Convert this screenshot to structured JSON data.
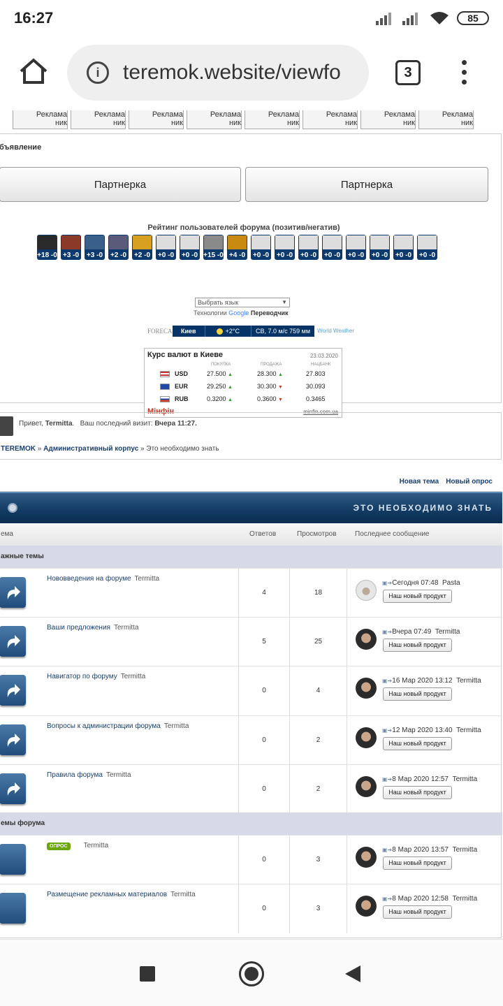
{
  "status": {
    "time": "16:27",
    "battery": "85"
  },
  "browser": {
    "url": "teremok.website/viewfo",
    "tab_count": "3"
  },
  "ads": {
    "label_top": "Реклама",
    "label_bottom": "ник"
  },
  "announce": {
    "label": "бъявление",
    "partner_left": "Партнерка",
    "partner_right": "Партнерка",
    "rating_title": "Рейтинг пользователей форума (позитив/негатив)",
    "ratings": [
      "+18 -0",
      "+3 -0",
      "+3 -0",
      "+2 -0",
      "+2 -0",
      "+0 -0",
      "+0 -0",
      "+15 -0",
      "+4 -0",
      "+0 -0",
      "+0 -0",
      "+0 -0",
      "+0 -0",
      "+0 -0",
      "+0 -0",
      "+0 -0",
      "+0 -0"
    ],
    "lang_select": "Выбрать язык",
    "powered_prefix": "Технологии",
    "powered_google": "Google",
    "powered_translator": "Переводчик"
  },
  "weather": {
    "brand": "FORECA",
    "city": "Киев",
    "temp": "+2°C",
    "wind": "СВ, 7.0 м/с 759 мм",
    "ww": "World Weather"
  },
  "fx": {
    "title": "Курс валют в Киеве",
    "date": "23.03.2020",
    "head_buy": "ПОКУПКА",
    "head_sell": "ПРОДАЖА",
    "head_nbu": "НАЦБАНК",
    "rows": [
      {
        "cur": "USD",
        "buy": "27.500",
        "sell": "28.300",
        "nbu": "27.803"
      },
      {
        "cur": "EUR",
        "buy": "29.250",
        "sell": "30.300",
        "nbu": "30.093"
      },
      {
        "cur": "RUB",
        "buy": "0.3200",
        "sell": "0.3600",
        "nbu": "0.3465"
      }
    ],
    "brand": "Мінфін",
    "link": "minfin.com.ua"
  },
  "welcome": {
    "hello": "Привет,",
    "user": "Termitta",
    "last_visit_label": "Ваш последний визит:",
    "last_visit": "Вчера 11:27."
  },
  "breadcrumb": {
    "home": "TEREMOK",
    "sep": "»",
    "section": "Административный корпус",
    "current": "Это необходимо знать"
  },
  "actions": {
    "new_topic": "Новая тема",
    "new_poll": "Новый опрос"
  },
  "forum": {
    "title": "ЭТО НЕОБХОДИМО ЗНАТЬ",
    "col_topic": "ема",
    "col_replies": "Ответов",
    "col_views": "Просмотров",
    "col_last": "Последнее сообщение",
    "section_important": "ажные темы",
    "section_forum": "емы форума",
    "last_btn": "Наш новый продукт",
    "topics": [
      {
        "title": "Нововведения на форуме",
        "author": "Termitta",
        "replies": "4",
        "views": "18",
        "last_time": "Сегодня 07:48",
        "last_user": "Pasta"
      },
      {
        "title": "Ваши предложения",
        "author": "Termitta",
        "replies": "5",
        "views": "25",
        "last_time": "Вчера 07:49",
        "last_user": "Termitta"
      },
      {
        "title": "Навигатор по форуму",
        "author": "Termitta",
        "replies": "0",
        "views": "4",
        "last_time": "16 Мар 2020 13:12",
        "last_user": "Termitta"
      },
      {
        "title": "Вопросы к администрации форума",
        "author": "Termitta",
        "replies": "0",
        "views": "2",
        "last_time": "12 Мар 2020 13:40",
        "last_user": "Termitta"
      },
      {
        "title": "Правила форума",
        "author": "Termitta",
        "replies": "0",
        "views": "2",
        "last_time": "8 Мар 2020 12:57",
        "last_user": "Termitta"
      },
      {
        "badge": "ОПРОС",
        "author": "Termitta",
        "replies": "0",
        "views": "3",
        "last_time": "8 Мар 2020 13:57",
        "last_user": "Termitta"
      },
      {
        "title": "Размещение рекламных материалов",
        "author": "Termitta",
        "replies": "0",
        "views": "3",
        "last_time": "8 Мар 2020 12:58",
        "last_user": "Termitta"
      }
    ]
  }
}
